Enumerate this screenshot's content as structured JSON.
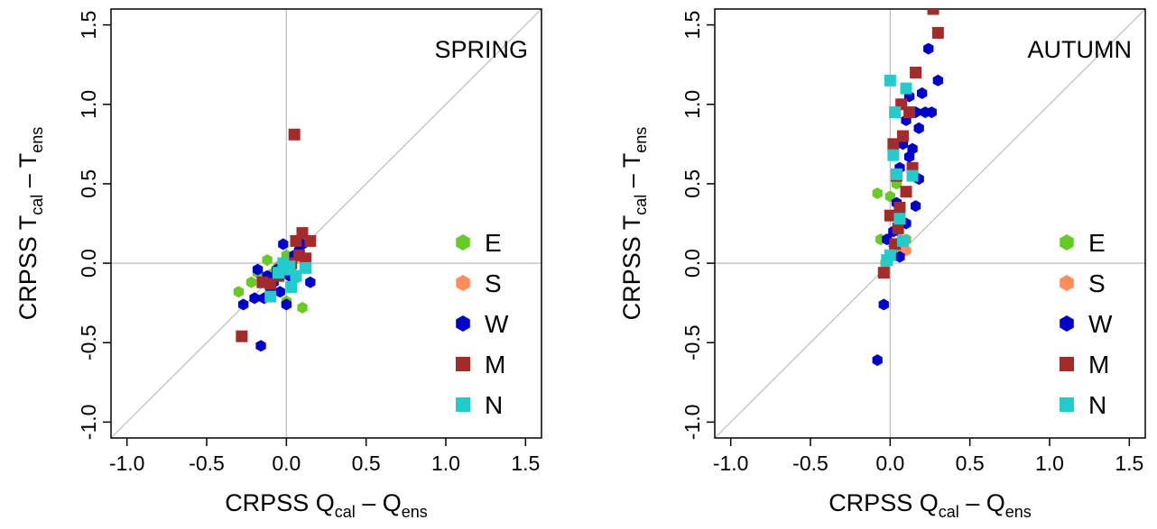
{
  "chart_data": [
    {
      "type": "scatter",
      "title": "SPRING",
      "xlabel": {
        "prefix": "CRPSS  Q",
        "sub1": "cal",
        "mid": " – Q",
        "sub2": "ens"
      },
      "ylabel": {
        "prefix": "CRPSS  T",
        "sub1": "cal",
        "mid": " – T",
        "sub2": "ens"
      },
      "xlim": [
        -1.1,
        1.6
      ],
      "ylim": [
        -1.1,
        1.6
      ],
      "xticks": [
        "-1.0",
        "-0.5",
        "0.0",
        "0.5",
        "1.0",
        "1.5"
      ],
      "yticks": [
        "-1.0",
        "-0.5",
        "0.0",
        "0.5",
        "1.0",
        "1.5"
      ],
      "reference_lines": [
        "x=0",
        "y=0",
        "y=x"
      ],
      "grid": false,
      "legend_position": "bottom-right",
      "series": [
        {
          "name": "E",
          "color": "#66cc22",
          "marker": "hexagon",
          "points": [
            [
              -0.3,
              -0.18
            ],
            [
              -0.22,
              -0.12
            ],
            [
              -0.18,
              -0.06
            ],
            [
              -0.12,
              0.02
            ],
            [
              -0.08,
              -0.06
            ],
            [
              -0.05,
              -0.02
            ],
            [
              0.0,
              -0.24
            ],
            [
              0.05,
              -0.1
            ],
            [
              0.1,
              -0.28
            ],
            [
              0.0,
              0.05
            ]
          ]
        },
        {
          "name": "S",
          "color": "#ff8c5a",
          "marker": "hexagon",
          "points": [
            [
              -0.1,
              -0.1
            ],
            [
              -0.05,
              -0.05
            ],
            [
              0.0,
              -0.02
            ],
            [
              0.05,
              0.02
            ]
          ]
        },
        {
          "name": "W",
          "color": "#0000cc",
          "marker": "hexagon",
          "points": [
            [
              -0.27,
              -0.26
            ],
            [
              -0.2,
              -0.22
            ],
            [
              -0.18,
              -0.04
            ],
            [
              -0.16,
              -0.52
            ],
            [
              -0.14,
              -0.22
            ],
            [
              -0.12,
              -0.08
            ],
            [
              -0.08,
              -0.12
            ],
            [
              -0.06,
              -0.04
            ],
            [
              -0.04,
              -0.18
            ],
            [
              -0.02,
              0.12
            ],
            [
              0.0,
              -0.26
            ],
            [
              0.02,
              -0.08
            ],
            [
              0.05,
              0.05
            ],
            [
              0.08,
              0.08
            ],
            [
              0.1,
              0.12
            ],
            [
              0.15,
              -0.12
            ],
            [
              0.03,
              -0.02
            ],
            [
              -0.1,
              -0.16
            ]
          ]
        },
        {
          "name": "M",
          "color": "#a52a2a",
          "marker": "square",
          "points": [
            [
              -0.28,
              -0.46
            ],
            [
              -0.15,
              -0.12
            ],
            [
              -0.1,
              -0.13
            ],
            [
              -0.05,
              -0.08
            ],
            [
              0.0,
              -0.02
            ],
            [
              0.03,
              0.0
            ],
            [
              0.05,
              0.81
            ],
            [
              0.06,
              0.14
            ],
            [
              0.08,
              0.05
            ],
            [
              0.1,
              0.19
            ],
            [
              0.12,
              0.03
            ],
            [
              0.15,
              0.14
            ]
          ]
        },
        {
          "name": "N",
          "color": "#22cccc",
          "marker": "square",
          "points": [
            [
              -0.1,
              -0.21
            ],
            [
              -0.05,
              -0.06
            ],
            [
              -0.02,
              0.0
            ],
            [
              0.0,
              -0.04
            ],
            [
              0.02,
              -0.02
            ],
            [
              0.03,
              -0.15
            ],
            [
              0.06,
              -0.08
            ],
            [
              0.12,
              -0.03
            ]
          ]
        }
      ]
    },
    {
      "type": "scatter",
      "title": "AUTUMN",
      "xlabel": {
        "prefix": "CRPSS  Q",
        "sub1": "cal",
        "mid": " – Q",
        "sub2": "ens"
      },
      "ylabel": {
        "prefix": "CRPSS  T",
        "sub1": "cal",
        "mid": " – T",
        "sub2": "ens"
      },
      "xlim": [
        -1.1,
        1.6
      ],
      "ylim": [
        -1.1,
        1.6
      ],
      "xticks": [
        "-1.0",
        "-0.5",
        "0.0",
        "0.5",
        "1.0",
        "1.5"
      ],
      "yticks": [
        "-1.0",
        "-0.5",
        "0.0",
        "0.5",
        "1.0",
        "1.5"
      ],
      "reference_lines": [
        "x=0",
        "y=0",
        "y=x"
      ],
      "grid": false,
      "legend_position": "bottom-right",
      "series": [
        {
          "name": "E",
          "color": "#66cc22",
          "marker": "hexagon",
          "points": [
            [
              -0.08,
              0.44
            ],
            [
              -0.06,
              0.15
            ],
            [
              -0.03,
              0.0
            ],
            [
              0.0,
              0.42
            ],
            [
              0.02,
              0.3
            ],
            [
              0.04,
              0.5
            ],
            [
              0.1,
              0.15
            ],
            [
              0.02,
              0.06
            ]
          ]
        },
        {
          "name": "S",
          "color": "#ff8c5a",
          "marker": "hexagon",
          "points": [
            [
              0.0,
              0.05
            ],
            [
              0.02,
              0.12
            ],
            [
              0.05,
              0.2
            ],
            [
              0.08,
              0.1
            ],
            [
              0.1,
              0.08
            ],
            [
              0.03,
              0.3
            ]
          ]
        },
        {
          "name": "W",
          "color": "#0000cc",
          "marker": "hexagon",
          "points": [
            [
              -0.08,
              -0.61
            ],
            [
              -0.04,
              -0.26
            ],
            [
              -0.02,
              0.15
            ],
            [
              0.0,
              0.05
            ],
            [
              0.02,
              0.2
            ],
            [
              0.04,
              0.38
            ],
            [
              0.06,
              0.6
            ],
            [
              0.08,
              0.75
            ],
            [
              0.1,
              0.9
            ],
            [
              0.12,
              1.05
            ],
            [
              0.14,
              0.72
            ],
            [
              0.16,
              0.95
            ],
            [
              0.18,
              0.85
            ],
            [
              0.2,
              1.07
            ],
            [
              0.22,
              0.95
            ],
            [
              0.24,
              1.35
            ],
            [
              0.26,
              0.95
            ],
            [
              0.3,
              1.15
            ],
            [
              0.16,
              0.36
            ],
            [
              0.18,
              0.53
            ],
            [
              0.12,
              0.67
            ],
            [
              0.1,
              0.25
            ],
            [
              0.06,
              0.04
            ]
          ]
        },
        {
          "name": "M",
          "color": "#a52a2a",
          "marker": "square",
          "points": [
            [
              -0.04,
              -0.06
            ],
            [
              0.0,
              0.3
            ],
            [
              0.02,
              0.75
            ],
            [
              0.04,
              0.55
            ],
            [
              0.06,
              0.35
            ],
            [
              0.07,
              1.0
            ],
            [
              0.08,
              0.8
            ],
            [
              0.1,
              0.45
            ],
            [
              0.12,
              0.95
            ],
            [
              0.14,
              0.6
            ],
            [
              0.16,
              1.2
            ],
            [
              0.27,
              1.6
            ],
            [
              0.3,
              1.45
            ],
            [
              0.05,
              0.22
            ],
            [
              0.03,
              0.12
            ]
          ]
        },
        {
          "name": "N",
          "color": "#22cccc",
          "marker": "square",
          "points": [
            [
              -0.02,
              0.02
            ],
            [
              0.0,
              1.15
            ],
            [
              0.02,
              0.68
            ],
            [
              0.03,
              0.95
            ],
            [
              0.04,
              0.56
            ],
            [
              0.06,
              0.28
            ],
            [
              0.08,
              0.14
            ],
            [
              0.1,
              1.1
            ],
            [
              0.14,
              0.55
            ],
            [
              0.0,
              0.05
            ]
          ]
        }
      ]
    }
  ]
}
